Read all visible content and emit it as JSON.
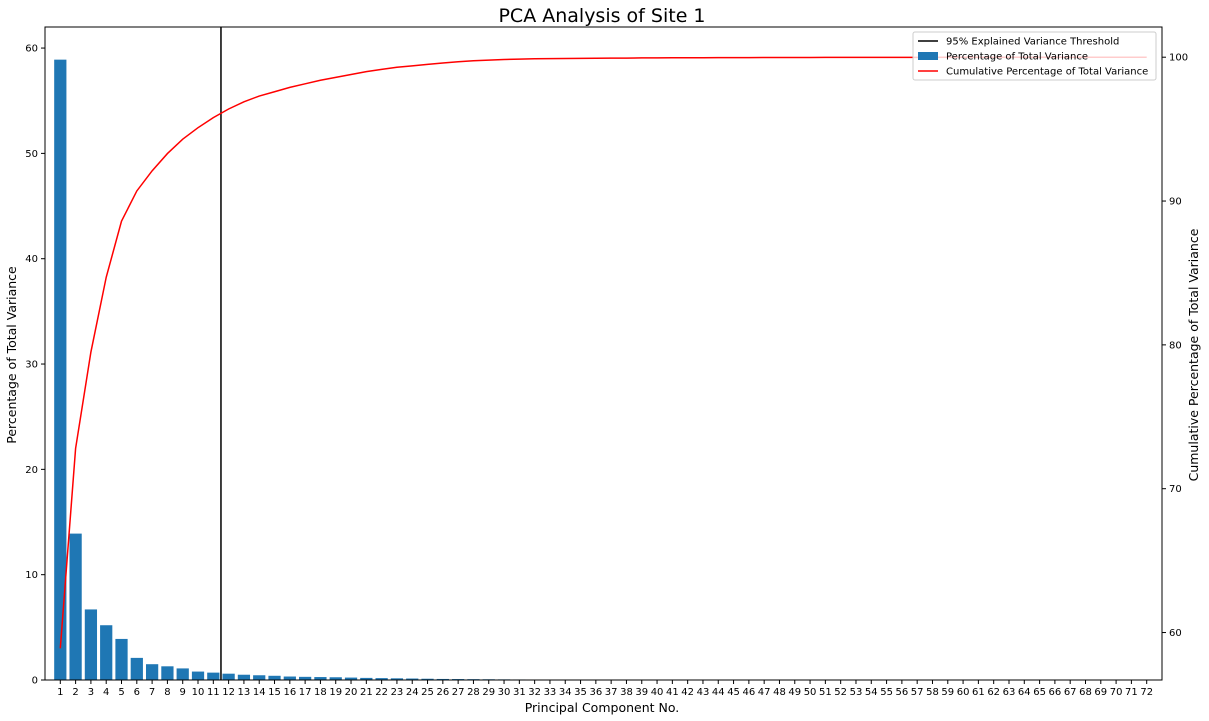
{
  "chart_data": {
    "type": "bar",
    "title": "PCA Analysis of Site 1",
    "xlabel": "Principal Component No.",
    "ylabel": "Percentage of Total Variance",
    "y2label": "Cumulative Percentage of Total Variance",
    "ylim": [
      0,
      62
    ],
    "y2lim": [
      56.7,
      102.1
    ],
    "yticks": [
      0,
      10,
      20,
      30,
      40,
      50,
      60
    ],
    "y2ticks": [
      60,
      70,
      80,
      90,
      100
    ],
    "categories": [
      "1",
      "2",
      "3",
      "4",
      "5",
      "6",
      "7",
      "8",
      "9",
      "10",
      "11",
      "12",
      "13",
      "14",
      "15",
      "16",
      "17",
      "18",
      "19",
      "20",
      "21",
      "22",
      "23",
      "24",
      "25",
      "26",
      "27",
      "28",
      "29",
      "30",
      "31",
      "32",
      "33",
      "34",
      "35",
      "36",
      "37",
      "38",
      "39",
      "40",
      "41",
      "42",
      "43",
      "44",
      "45",
      "46",
      "47",
      "48",
      "49",
      "50",
      "51",
      "52",
      "53",
      "54",
      "55",
      "56",
      "57",
      "58",
      "59",
      "60",
      "61",
      "62",
      "63",
      "64",
      "65",
      "66",
      "67",
      "68",
      "69",
      "70",
      "71",
      "72"
    ],
    "threshold_component": 11.5,
    "legend_position": "top-right",
    "series": [
      {
        "name": "Percentage of Total Variance",
        "type": "bar",
        "axis": "left",
        "color": "#1f77b4",
        "values": [
          58.9,
          13.9,
          6.7,
          5.2,
          3.9,
          2.1,
          1.5,
          1.3,
          1.1,
          0.8,
          0.7,
          0.6,
          0.5,
          0.45,
          0.4,
          0.33,
          0.3,
          0.28,
          0.26,
          0.23,
          0.2,
          0.18,
          0.16,
          0.14,
          0.12,
          0.1,
          0.09,
          0.08,
          0.07,
          0.06,
          0.05,
          0.04,
          0.03,
          0.03,
          0.02,
          0.02,
          0.02,
          0.02,
          0.01,
          0.01,
          0.01,
          0.01,
          0.01,
          0.01,
          0.01,
          0.01,
          0.01,
          0.01,
          0.01,
          0.01,
          0.01,
          0.01,
          0.01,
          0.01,
          0.01,
          0.01,
          0.01,
          0.01,
          0.01,
          0.01,
          0.01,
          0.01,
          0.01,
          0.01,
          0.01,
          0.01,
          0.01,
          0.01,
          0.01,
          0.01,
          0.01,
          0.01
        ]
      },
      {
        "name": "Cumulative Percentage of Total Variance",
        "type": "line",
        "axis": "right",
        "color": "#ff0000",
        "values": [
          58.9,
          72.8,
          79.5,
          84.7,
          88.6,
          90.7,
          92.1,
          93.3,
          94.3,
          95.1,
          95.8,
          96.4,
          96.9,
          97.3,
          97.6,
          97.9,
          98.15,
          98.4,
          98.6,
          98.8,
          99.0,
          99.15,
          99.3,
          99.4,
          99.5,
          99.6,
          99.68,
          99.75,
          99.8,
          99.84,
          99.87,
          99.89,
          99.9,
          99.91,
          99.92,
          99.93,
          99.94,
          99.94,
          99.95,
          99.95,
          99.96,
          99.96,
          99.96,
          99.97,
          99.97,
          99.97,
          99.98,
          99.98,
          99.98,
          99.98,
          99.99,
          99.99,
          99.99,
          99.99,
          99.99,
          99.99,
          99.99,
          99.99,
          100.0,
          100.0,
          100.0,
          100.0,
          100.0,
          100.0,
          100.0,
          100.0,
          100.0,
          100.0,
          100.0,
          100.0,
          100.0,
          100.0
        ]
      },
      {
        "name": "95% Explained Variance Threshold",
        "type": "vline",
        "color": "#000000"
      }
    ]
  }
}
